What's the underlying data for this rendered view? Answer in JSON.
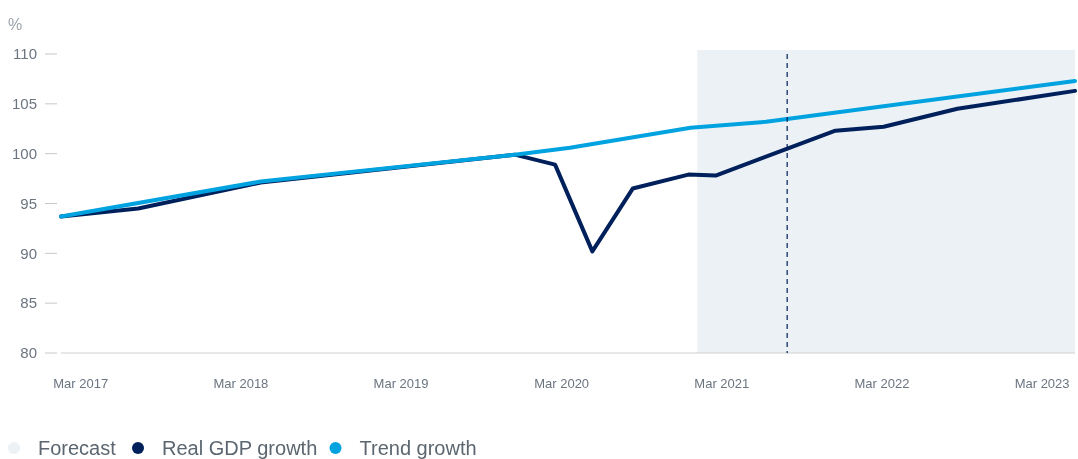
{
  "chart_data": {
    "type": "line",
    "ylabel": "%",
    "x": [
      "2017-01-15",
      "2017-07-10",
      "2018-04-15",
      "2019-11-15",
      "2020-02-15",
      "2020-05-10",
      "2020-08-10",
      "2020-12-15",
      "2021-02-15",
      "2021-11-15",
      "2022-03-05",
      "2022-08-20",
      "2023-05-15"
    ],
    "series": [
      {
        "name": "Real GDP growth",
        "color": "#00205b",
        "values": [
          93.7,
          94.5,
          97.1,
          99.9,
          98.9,
          90.2,
          96.5,
          97.9,
          97.8,
          102.3,
          102.7,
          104.5,
          106.3
        ]
      },
      {
        "name": "Trend growth",
        "color": "#00a3e0",
        "x": [
          "2017-01-15",
          "2018-04-15",
          "2019-11-15",
          "2020-03-20",
          "2020-12-20",
          "2021-06-10",
          "2023-05-15"
        ],
        "values": [
          93.7,
          97.2,
          99.9,
          100.6,
          102.6,
          103.2,
          107.3
        ]
      }
    ],
    "xlim": [
      "2017-01-15",
      "2023-05-15"
    ],
    "xticks": [
      {
        "value": "2017-03-01",
        "label": "Mar 2017"
      },
      {
        "value": "2018-03-01",
        "label": "Mar 2018"
      },
      {
        "value": "2019-03-01",
        "label": "Mar 2019"
      },
      {
        "value": "2020-03-01",
        "label": "Mar 2020"
      },
      {
        "value": "2021-03-01",
        "label": "Mar 2021"
      },
      {
        "value": "2022-03-01",
        "label": "Mar 2022"
      },
      {
        "value": "2023-03-01",
        "label": "Mar 2023"
      }
    ],
    "ylim": [
      80,
      110
    ],
    "yticks": [
      80,
      85,
      90,
      95,
      100,
      105,
      110
    ],
    "bands": [
      {
        "axis": "x",
        "from": "2021-01-04",
        "to": "2023-05-15",
        "label": "Forecast",
        "color": "#ebf1f5"
      }
    ],
    "ref_lines": [
      {
        "axis": "x",
        "value": "2021-07-28",
        "color": "#00205b",
        "line_style": "dashed"
      }
    ],
    "grid": false,
    "legend": "bottom",
    "marker": "none",
    "line_style": "solid"
  }
}
